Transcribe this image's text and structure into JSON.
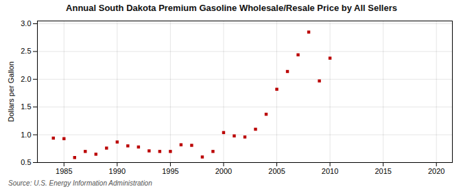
{
  "chart_data": {
    "type": "scatter",
    "title": "Annual South Dakota Premium Gasoline Wholesale/Resale Price by All Sellers",
    "ylabel": "Dollars per Gallon",
    "source": "Source: U.S. Energy Information Administration",
    "x": [
      1984,
      1985,
      1986,
      1987,
      1988,
      1989,
      1990,
      1991,
      1992,
      1993,
      1994,
      1995,
      1996,
      1997,
      1998,
      1999,
      2000,
      2001,
      2002,
      2003,
      2004,
      2005,
      2006,
      2007,
      2008,
      2009,
      2010
    ],
    "values": [
      0.94,
      0.93,
      0.59,
      0.7,
      0.65,
      0.76,
      0.87,
      0.8,
      0.78,
      0.71,
      0.7,
      0.7,
      0.82,
      0.81,
      0.6,
      0.7,
      1.04,
      0.98,
      0.96,
      1.1,
      1.37,
      1.82,
      2.14,
      2.44,
      2.85,
      1.97,
      2.38
    ],
    "color": "#bb0000",
    "marker": "square",
    "xlim": [
      1982.5,
      2021.5
    ],
    "xticks": [
      1985,
      1990,
      1995,
      2000,
      2005,
      2010,
      2015,
      2020
    ],
    "ylim": [
      0.5,
      3.05
    ],
    "yticks": [
      0.5,
      {
        "value": 1,
        "label": "1.0"
      },
      1.5,
      {
        "value": 2,
        "label": "2.0"
      },
      2.5,
      {
        "value": 3,
        "label": "3.0"
      }
    ],
    "grid": true
  }
}
